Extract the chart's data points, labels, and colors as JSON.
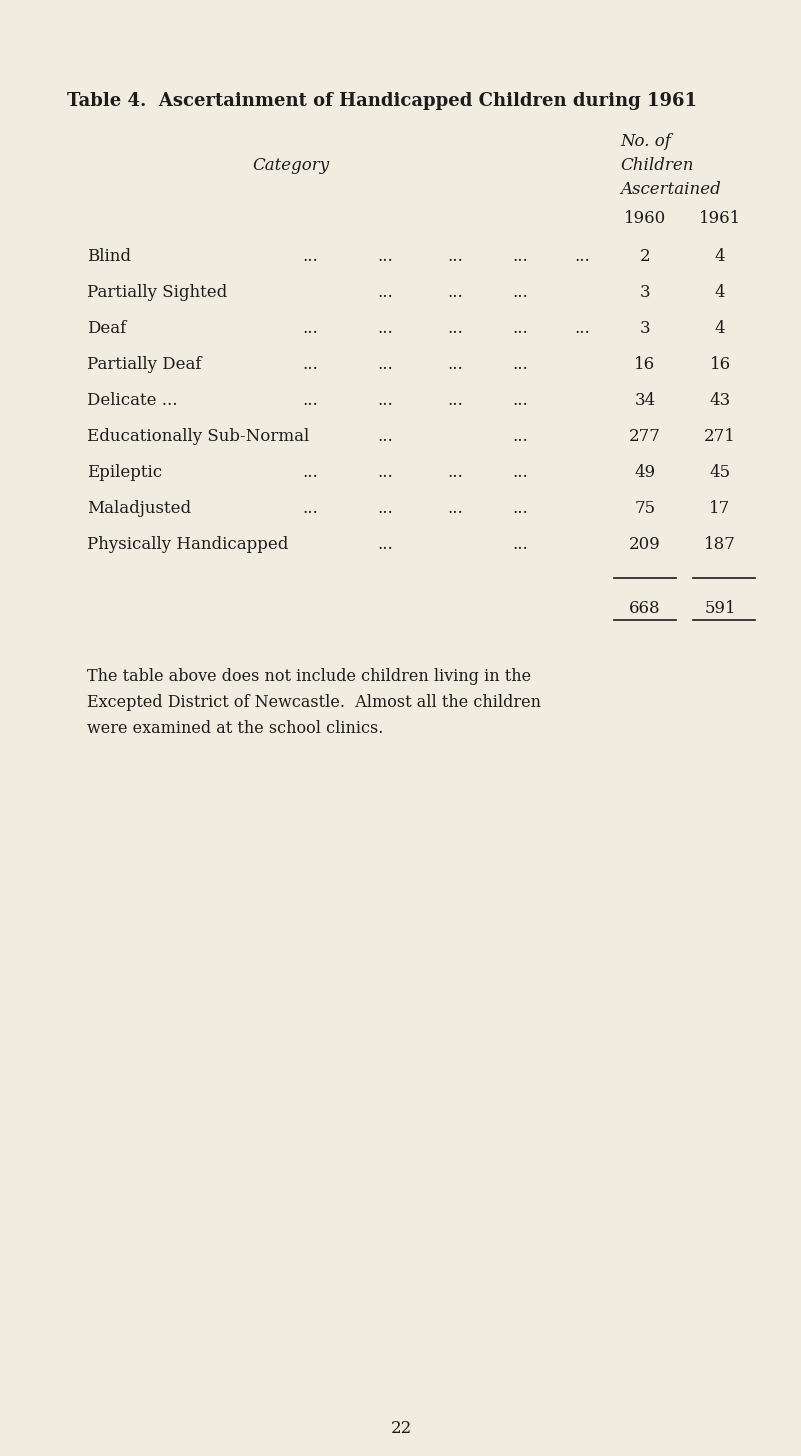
{
  "title": "Table 4.  Ascertainment of Handicapped Children during 1961",
  "header_no_of": "No. of",
  "header_children": "Children",
  "header_ascertained": "Ascertained",
  "col_header": "Category",
  "col_year1": "1960",
  "col_year2": "1961",
  "rows": [
    {
      "category": "Blind",
      "dots1": "...",
      "dots2": "...",
      "dots3": "...",
      "dots4": "...",
      "dots5": "...",
      "val1": "2",
      "val2": "4"
    },
    {
      "category": "Partially Sighted",
      "dots1": "",
      "dots2": "...",
      "dots3": "...",
      "dots4": "...",
      "dots5": "",
      "val1": "3",
      "val2": "4"
    },
    {
      "category": "Deaf",
      "dots1": "...",
      "dots2": "...",
      "dots3": "...",
      "dots4": "...",
      "dots5": "...",
      "val1": "3",
      "val2": "4"
    },
    {
      "category": "Partially Deaf",
      "dots1": "...",
      "dots2": "...",
      "dots3": "...",
      "dots4": "...",
      "dots5": "",
      "val1": "16",
      "val2": "16"
    },
    {
      "category": "Delicate ...",
      "dots1": "...",
      "dots2": "...",
      "dots3": "...",
      "dots4": "...",
      "dots5": "",
      "val1": "34",
      "val2": "43"
    },
    {
      "category": "Educationally Sub-Normal",
      "dots1": "",
      "dots2": "...",
      "dots3": "",
      "dots4": "...",
      "dots5": "",
      "val1": "277",
      "val2": "271"
    },
    {
      "category": "Epileptic",
      "dots1": "...",
      "dots2": "...",
      "dots3": "...",
      "dots4": "...",
      "dots5": "",
      "val1": "49",
      "val2": "45"
    },
    {
      "category": "Maladjusted",
      "dots1": "...",
      "dots2": "...",
      "dots3": "...",
      "dots4": "...",
      "dots5": "",
      "val1": "75",
      "val2": "17"
    },
    {
      "category": "Physically Handicapped",
      "dots1": "",
      "dots2": "...",
      "dots3": "",
      "dots4": "...",
      "dots5": "",
      "val1": "209",
      "val2": "187"
    }
  ],
  "total1": "668",
  "total2": "591",
  "footnote_line1": "The table above does not include children living in the",
  "footnote_line2": "Excepted District of Newcastle.  Almost all the children",
  "footnote_line3": "were examined at the school clinics.",
  "page_number": "22",
  "bg_color": "#f0ece0",
  "text_color": "#1c1c1c",
  "title_fontsize": 13.0,
  "body_fontsize": 12.0,
  "header_fontsize": 12.0,
  "footnote_fontsize": 11.5
}
